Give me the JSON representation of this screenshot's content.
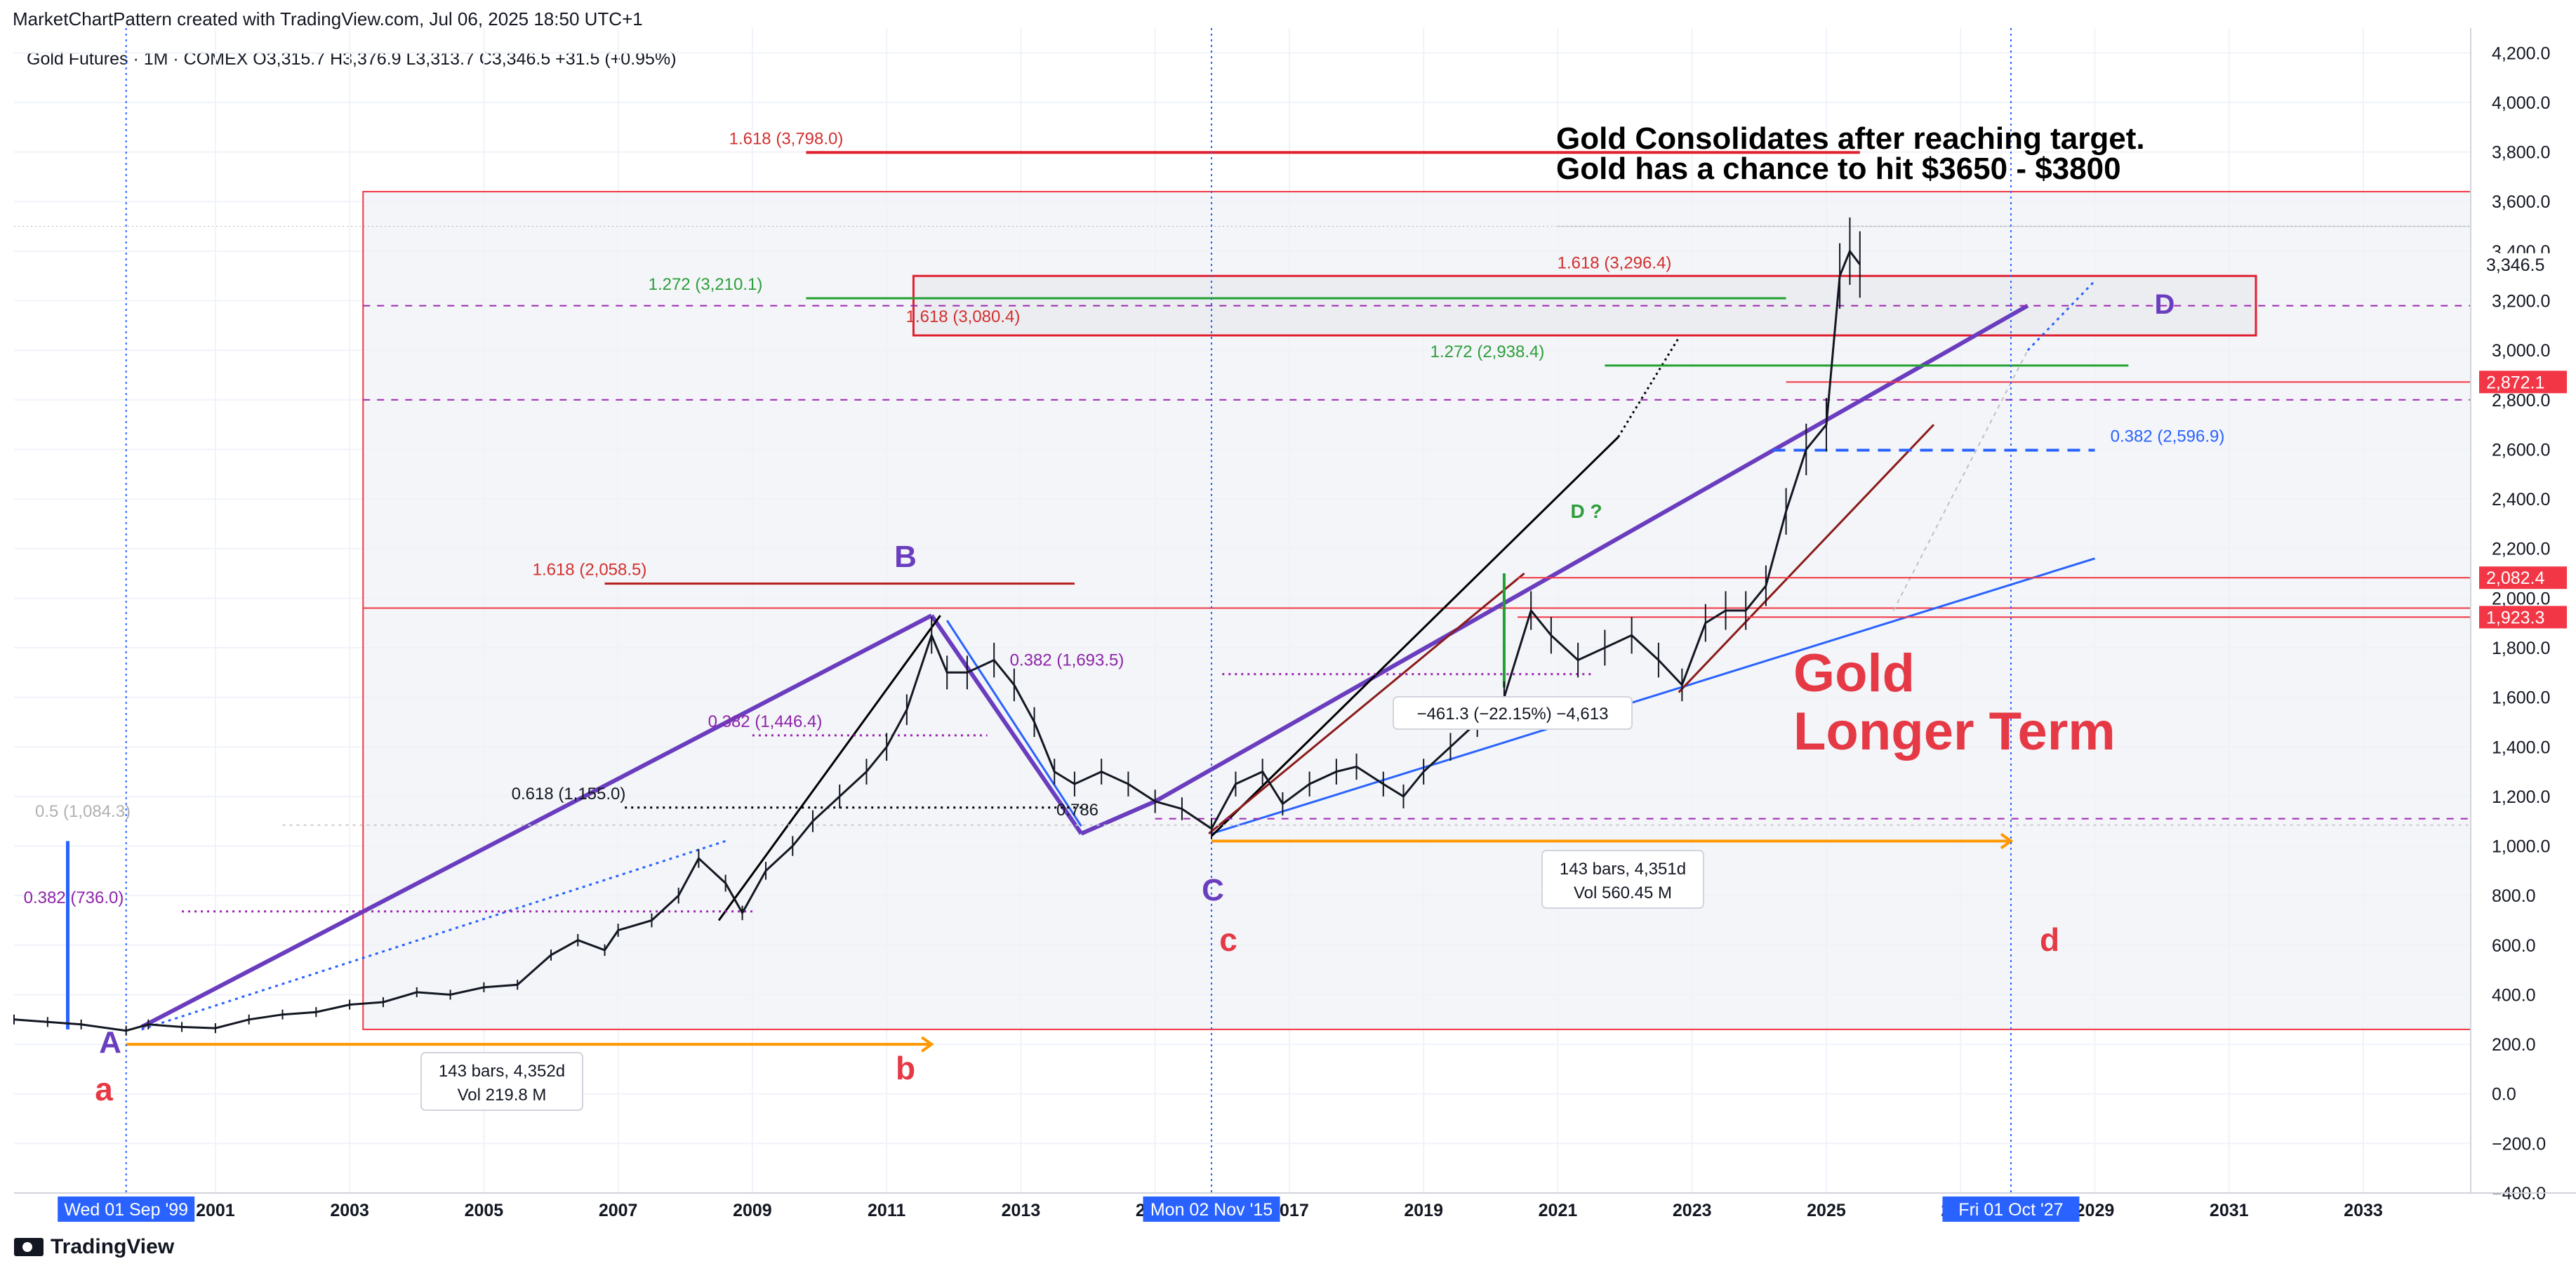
{
  "header": {
    "attribution": "MarketChartPattern created with TradingView.com, Jul 06, 2025 18:50 UTC+1",
    "symbol_line": "Gold Futures · 1M · COMEX  O3,315.7  H3,376.9  L3,313.7  C3,346.5  +31.5 (+0.95%)"
  },
  "footer": {
    "brand": "TradingView"
  },
  "chart_data": {
    "type": "line",
    "title": "Gold Consolidates after reaching target.",
    "subtitle": "Gold has a chance to hit $3650 - $3800",
    "big_label": [
      "Gold",
      "Longer Term"
    ],
    "ylim": [
      -400,
      4300
    ],
    "xlim": [
      1998.0,
      2034.6
    ],
    "y_ticks": [
      -400,
      -200,
      0,
      200,
      400,
      600,
      800,
      1000,
      1200,
      1400,
      1600,
      1800,
      2000,
      2200,
      2400,
      2600,
      2800,
      3000,
      3200,
      3400,
      3600,
      3800,
      4000,
      4200
    ],
    "y_tick_labels": [
      "−400.0",
      "−200.0",
      "0.0",
      "200.0",
      "400.0",
      "600.0",
      "800.0",
      "1,000.0",
      "1,200.0",
      "1,400.0",
      "1,600.0",
      "1,800.0",
      "2,000.0",
      "2,200.0",
      "2,400.0",
      "2,600.0",
      "2,800.0",
      "3,000.0",
      "3,200.0",
      "3,400.0",
      "3,600.0",
      "3,800.0",
      "4,000.0",
      "4,200.0"
    ],
    "x_ticks": [
      2001,
      2003,
      2005,
      2007,
      2009,
      2011,
      2013,
      2015,
      2017,
      2019,
      2021,
      2023,
      2025,
      2027,
      2029,
      2031,
      2033
    ],
    "x_tick_labels": [
      "2001",
      "2003",
      "2005",
      "2007",
      "2009",
      "2011",
      "2013",
      "2015",
      "2017",
      "2019",
      "2021",
      "2023",
      "2025",
      "2027",
      "2029",
      "2031",
      "2033"
    ],
    "x_markers": [
      {
        "x": 1999.67,
        "label": "Wed 01 Sep '99"
      },
      {
        "x": 2015.84,
        "label": "Mon 02 Nov '15"
      },
      {
        "x": 2027.75,
        "label": "Fri 01 Oct '27"
      }
    ],
    "price_tags": [
      {
        "y": 3346.5,
        "label": "3,346.5",
        "style": "last"
      },
      {
        "y": 2872.1,
        "label": "2,872.1",
        "style": "red"
      },
      {
        "y": 2082.4,
        "label": "2,082.4",
        "style": "red"
      },
      {
        "y": 1923.3,
        "label": "1,923.3",
        "style": "red"
      }
    ],
    "series": [
      {
        "x": [
          1998.0,
          1998.5,
          1999.0,
          1999.67,
          2000.0,
          2000.5,
          2001.0,
          2001.5,
          2002.0,
          2002.5,
          2003.0,
          2003.5,
          2004.0,
          2004.5,
          2005.0,
          2005.5,
          2006.0,
          2006.4,
          2006.8,
          2007.0,
          2007.5,
          2007.9,
          2008.2,
          2008.6,
          2008.85,
          2009.2,
          2009.6,
          2009.9,
          2010.3,
          2010.7,
          2011.0,
          2011.3,
          2011.67,
          2011.9,
          2012.2,
          2012.6,
          2012.9,
          2013.2,
          2013.5,
          2013.8,
          2014.2,
          2014.6,
          2015.0,
          2015.4,
          2015.84,
          2016.2,
          2016.6,
          2016.9,
          2017.3,
          2017.7,
          2018.0,
          2018.4,
          2018.7,
          2019.0,
          2019.4,
          2019.8,
          2020.2,
          2020.6,
          2020.9,
          2021.3,
          2021.7,
          2022.1,
          2022.5,
          2022.85,
          2023.2,
          2023.5,
          2023.8,
          2024.1,
          2024.4,
          2024.7,
          2025.0,
          2025.2,
          2025.35,
          2025.5
        ],
        "values": [
          300,
          290,
          280,
          255,
          280,
          270,
          265,
          300,
          320,
          330,
          360,
          370,
          410,
          400,
          430,
          440,
          560,
          620,
          580,
          660,
          700,
          800,
          950,
          850,
          730,
          900,
          1000,
          1100,
          1200,
          1300,
          1400,
          1550,
          1850,
          1700,
          1700,
          1750,
          1650,
          1500,
          1300,
          1250,
          1300,
          1250,
          1180,
          1150,
          1070,
          1250,
          1300,
          1170,
          1250,
          1300,
          1320,
          1250,
          1200,
          1300,
          1400,
          1500,
          1600,
          1950,
          1850,
          1750,
          1800,
          1850,
          1750,
          1650,
          1900,
          1950,
          1950,
          2050,
          2350,
          2600,
          2700,
          3300,
          3400,
          3346
        ]
      }
    ],
    "annotations": [
      {
        "text": "1.618 (3,798.0)",
        "y": 3798,
        "kind": "fib-red"
      },
      {
        "text": "1.618 (3,296.4)",
        "y": 3296.4,
        "kind": "fib-red"
      },
      {
        "text": "1.272 (3,210.1)",
        "y": 3210.1,
        "kind": "fib-green"
      },
      {
        "text": "1.618 (3,080.4)",
        "y": 3080.4,
        "kind": "fib-red"
      },
      {
        "text": "1.272 (2,938.4)",
        "y": 2938.4,
        "kind": "fib-green"
      },
      {
        "text": "0.382 (2,596.9)",
        "y": 2596.9,
        "kind": "fib-blue"
      },
      {
        "text": "1.618 (2,058.5)",
        "y": 2058.5,
        "kind": "fib-red"
      },
      {
        "text": "0.382 (1,693.5)",
        "y": 1693.5,
        "kind": "fib-purple"
      },
      {
        "text": "0.382 (1,446.4)",
        "y": 1446.4,
        "kind": "fib-purple"
      },
      {
        "text": "0.618 (1,155.0)",
        "y": 1155.0,
        "kind": "fib-black"
      },
      {
        "text": "0.786",
        "y": 1140,
        "kind": "fib-black"
      },
      {
        "text": "0.5 (1,084.3)",
        "y": 1084.3,
        "kind": "fib-grey"
      },
      {
        "text": "0.382 (736.0)",
        "y": 736.0,
        "kind": "fib-purple"
      }
    ],
    "wave_labels": [
      {
        "text": "A",
        "color": "purple"
      },
      {
        "text": "a",
        "color": "red"
      },
      {
        "text": "B",
        "color": "purple"
      },
      {
        "text": "b",
        "color": "red"
      },
      {
        "text": "C",
        "color": "purple"
      },
      {
        "text": "c",
        "color": "red"
      },
      {
        "text": "D",
        "color": "purple"
      },
      {
        "text": "d",
        "color": "red"
      },
      {
        "text": "D ?",
        "color": "green"
      }
    ],
    "measure_boxes": [
      {
        "line1": "143 bars, 4,352d",
        "line2": "Vol 219.8 M"
      },
      {
        "line1": "143 bars, 4,351d",
        "line2": "Vol 560.45 M"
      },
      {
        "line1": "−461.3 (−22.15%) −4,613",
        "line2": ""
      }
    ],
    "grid": true,
    "legend": "none"
  }
}
